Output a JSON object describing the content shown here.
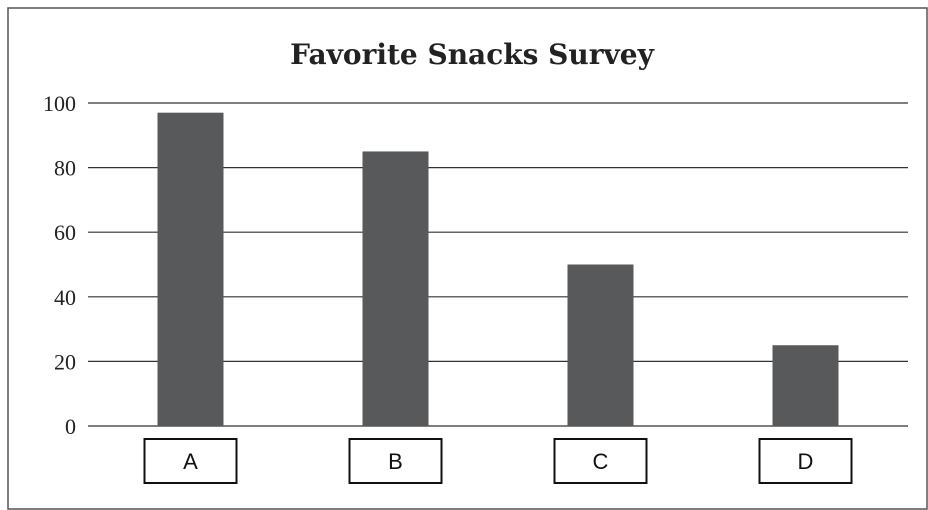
{
  "chart_data": {
    "type": "bar",
    "title": "Favorite Snacks Survey",
    "xlabel": "",
    "ylabel": "",
    "categories": [
      "A",
      "B",
      "C",
      "D"
    ],
    "values": [
      97,
      85,
      50,
      25
    ],
    "ylim": [
      0,
      100
    ],
    "yticks": [
      0,
      20,
      40,
      60,
      80,
      100
    ],
    "grid": true,
    "legend": "none",
    "colors": {
      "bar": "#58595b",
      "grid": "#333333",
      "border": "#555555"
    }
  }
}
